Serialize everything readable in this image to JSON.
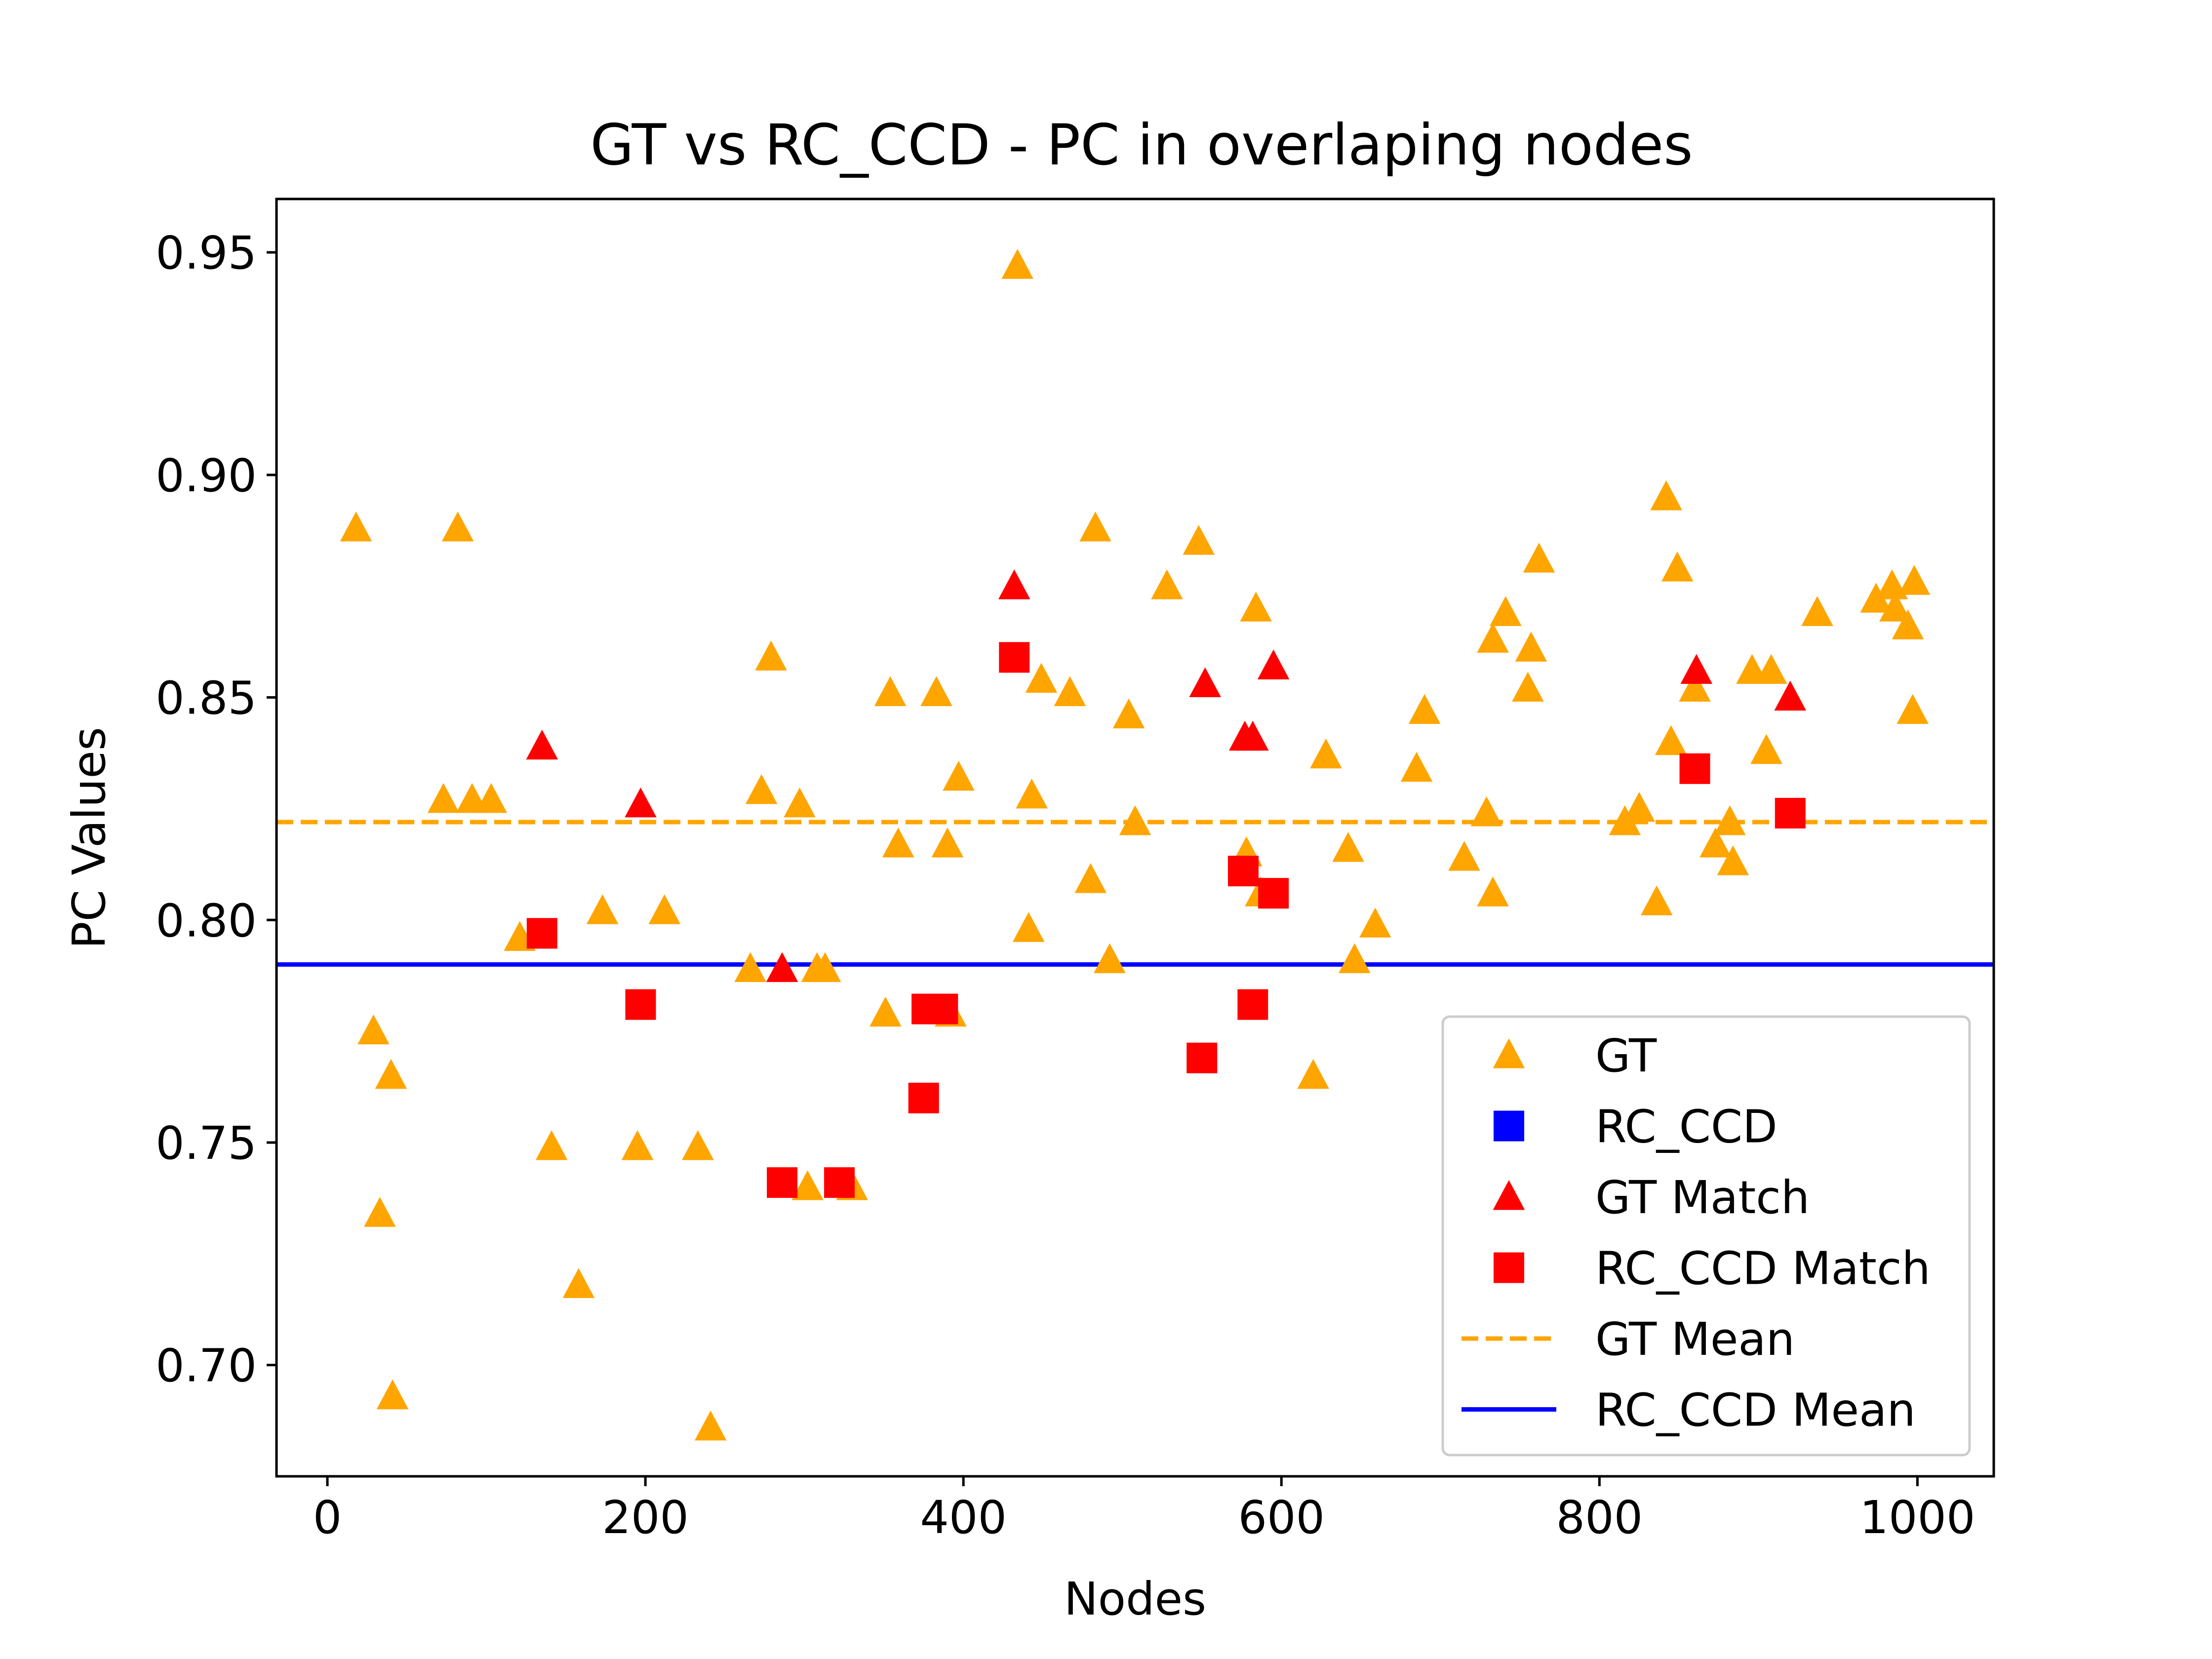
{
  "chart_data": {
    "type": "scatter",
    "title": "GT vs RC_CCD - PC in overlaping nodes",
    "xlabel": "Nodes",
    "ylabel": "PC Values",
    "xlim": [
      -32,
      1048
    ],
    "ylim": [
      0.675,
      0.962
    ],
    "xticks": [
      0,
      200,
      400,
      600,
      800,
      1000
    ],
    "xtick_labels": [
      "0",
      "200",
      "400",
      "600",
      "800",
      "1000"
    ],
    "yticks": [
      0.7,
      0.75,
      0.8,
      0.85,
      0.9,
      0.95
    ],
    "ytick_labels": [
      "0.70",
      "0.75",
      "0.80",
      "0.85",
      "0.90",
      "0.95"
    ],
    "grid": false,
    "legend_position": "lower-right",
    "colors": {
      "gt": "#FFA500",
      "rc_ccd": "#0000FF",
      "match": "#FF0000"
    },
    "legend": [
      {
        "label": "GT",
        "marker": "triangle",
        "color": "#FFA500"
      },
      {
        "label": "RC_CCD",
        "marker": "square",
        "color": "#0000FF"
      },
      {
        "label": "GT Match",
        "marker": "triangle",
        "color": "#FF0000"
      },
      {
        "label": "RC_CCD Match",
        "marker": "square",
        "color": "#FF0000"
      },
      {
        "label": "GT Mean",
        "marker": "dashed-line",
        "color": "#FFA500"
      },
      {
        "label": "RC_CCD Mean",
        "marker": "solid-line",
        "color": "#0000FF"
      }
    ],
    "series": [
      {
        "name": "GT",
        "marker": "triangle",
        "color": "#FFA500",
        "points": [
          [
            18,
            0.888
          ],
          [
            29,
            0.775
          ],
          [
            33,
            0.734
          ],
          [
            40,
            0.765
          ],
          [
            41,
            0.693
          ],
          [
            73,
            0.827
          ],
          [
            82,
            0.888
          ],
          [
            91,
            0.827
          ],
          [
            103,
            0.827
          ],
          [
            121,
            0.796
          ],
          [
            141,
            0.749
          ],
          [
            158,
            0.718
          ],
          [
            173,
            0.802
          ],
          [
            195,
            0.749
          ],
          [
            212,
            0.802
          ],
          [
            233,
            0.749
          ],
          [
            241,
            0.686
          ],
          [
            266,
            0.789
          ],
          [
            273,
            0.829
          ],
          [
            279,
            0.859
          ],
          [
            297,
            0.826
          ],
          [
            302,
            0.74
          ],
          [
            308,
            0.789
          ],
          [
            313,
            0.789
          ],
          [
            330,
            0.74
          ],
          [
            351,
            0.779
          ],
          [
            354,
            0.851
          ],
          [
            359,
            0.817
          ],
          [
            383,
            0.851
          ],
          [
            390,
            0.817
          ],
          [
            392,
            0.779
          ],
          [
            397,
            0.832
          ],
          [
            434,
            0.947
          ],
          [
            441,
            0.798
          ],
          [
            443,
            0.828
          ],
          [
            449,
            0.854
          ],
          [
            467,
            0.851
          ],
          [
            480,
            0.809
          ],
          [
            483,
            0.888
          ],
          [
            492,
            0.791
          ],
          [
            504,
            0.846
          ],
          [
            508,
            0.822
          ],
          [
            528,
            0.875
          ],
          [
            548,
            0.885
          ],
          [
            578,
            0.815
          ],
          [
            584,
            0.87
          ],
          [
            587,
            0.806
          ],
          [
            628,
            0.837
          ],
          [
            620,
            0.765
          ],
          [
            642,
            0.816
          ],
          [
            646,
            0.791
          ],
          [
            659,
            0.799
          ],
          [
            685,
            0.834
          ],
          [
            690,
            0.847
          ],
          [
            715,
            0.814
          ],
          [
            729,
            0.824
          ],
          [
            733,
            0.863
          ],
          [
            733,
            0.806
          ],
          [
            741,
            0.869
          ],
          [
            755,
            0.852
          ],
          [
            757,
            0.861
          ],
          [
            762,
            0.881
          ],
          [
            816,
            0.822
          ],
          [
            825,
            0.825
          ],
          [
            836,
            0.804
          ],
          [
            842,
            0.895
          ],
          [
            845,
            0.84
          ],
          [
            849,
            0.879
          ],
          [
            860,
            0.852
          ],
          [
            873,
            0.817
          ],
          [
            882,
            0.822
          ],
          [
            884,
            0.813
          ],
          [
            896,
            0.856
          ],
          [
            905,
            0.838
          ],
          [
            908,
            0.856
          ],
          [
            937,
            0.869
          ],
          [
            974,
            0.872
          ],
          [
            984,
            0.875
          ],
          [
            986,
            0.87
          ],
          [
            994,
            0.866
          ],
          [
            997,
            0.847
          ],
          [
            998,
            0.876
          ]
        ]
      },
      {
        "name": "RC_CCD",
        "marker": "square",
        "color": "#0000FF",
        "points": []
      },
      {
        "name": "GT Match",
        "marker": "triangle",
        "color": "#FF0000",
        "points": [
          [
            135,
            0.839
          ],
          [
            197,
            0.826
          ],
          [
            286,
            0.789
          ],
          [
            432,
            0.875
          ],
          [
            552,
            0.853
          ],
          [
            577,
            0.841
          ],
          [
            582,
            0.841
          ],
          [
            595,
            0.857
          ],
          [
            861,
            0.856
          ],
          [
            920,
            0.85
          ]
        ]
      },
      {
        "name": "RC_CCD Match",
        "marker": "square",
        "color": "#FF0000",
        "points": [
          [
            135,
            0.797
          ],
          [
            197,
            0.781
          ],
          [
            286,
            0.741
          ],
          [
            322,
            0.741
          ],
          [
            375,
            0.76
          ],
          [
            377,
            0.78
          ],
          [
            387,
            0.78
          ],
          [
            432,
            0.859
          ],
          [
            550,
            0.769
          ],
          [
            576,
            0.811
          ],
          [
            582,
            0.781
          ],
          [
            595,
            0.806
          ],
          [
            860,
            0.834
          ],
          [
            920,
            0.824
          ]
        ]
      }
    ],
    "mean_lines": [
      {
        "name": "GT Mean",
        "y": 0.822,
        "color": "#FFA500",
        "style": "dashed"
      },
      {
        "name": "RC_CCD Mean",
        "y": 0.79,
        "color": "#0000FF",
        "style": "solid"
      }
    ]
  }
}
